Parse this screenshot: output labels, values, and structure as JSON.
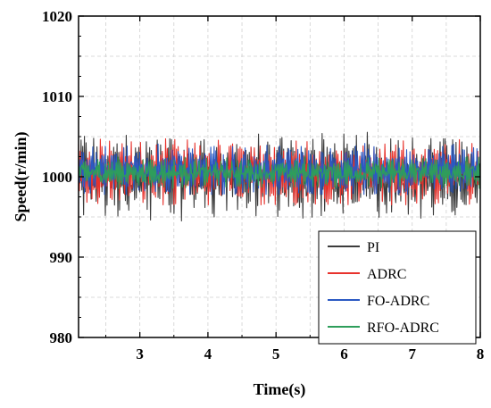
{
  "chart_data": {
    "type": "line",
    "xlabel": "Time(s)",
    "ylabel": "Speed(r/min)",
    "xlim": [
      2.1,
      8.0
    ],
    "ylim": [
      980,
      1020
    ],
    "xticks": [
      "3",
      "4",
      "5",
      "6",
      "7",
      "8"
    ],
    "xtick_values": [
      3,
      4,
      5,
      6,
      7,
      8
    ],
    "yticks": [
      "980",
      "990",
      "1000",
      "1010",
      "1020"
    ],
    "ytick_values": [
      980,
      990,
      1000,
      1010,
      1020
    ],
    "grid": true,
    "legend_position": "bottom-right",
    "series": [
      {
        "name": "PI",
        "color": "#3c3c3c",
        "center": 1000,
        "min": 994.5,
        "max": 1005.8
      },
      {
        "name": "ADRC",
        "color": "#e8322c",
        "center": 1000.5,
        "min": 996.5,
        "max": 1005.2
      },
      {
        "name": "FO-ADRC",
        "color": "#2b59c3",
        "center": 1000.8,
        "min": 997.8,
        "max": 1004.6
      },
      {
        "name": "RFO-ADRC",
        "color": "#2e9e5b",
        "center": 1000.5,
        "min": 998.5,
        "max": 1002.6
      }
    ]
  }
}
